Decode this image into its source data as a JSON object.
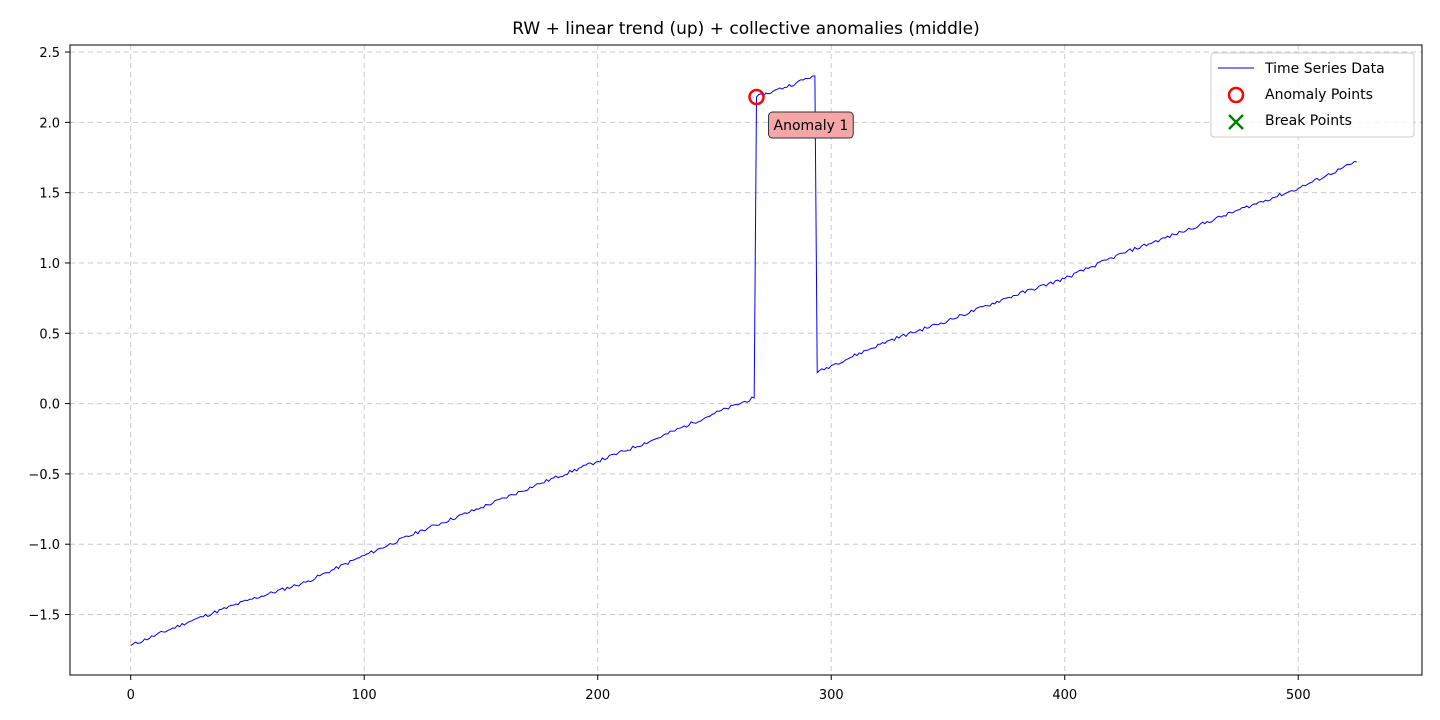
{
  "chart_data": {
    "type": "line",
    "title": "RW + linear trend (up) + collective anomalies (middle)",
    "xlabel": "",
    "ylabel": "",
    "xlim": [
      -26,
      553
    ],
    "ylim": [
      -1.93,
      2.55
    ],
    "x_ticks": [
      0,
      100,
      200,
      300,
      400,
      500
    ],
    "x_tick_labels": [
      "0",
      "100",
      "200",
      "300",
      "400",
      "500"
    ],
    "y_ticks": [
      -1.5,
      -1.0,
      -0.5,
      0.0,
      0.5,
      1.0,
      1.5,
      2.0,
      2.5
    ],
    "y_tick_labels": [
      "−1.5",
      "−1.0",
      "−0.5",
      "0.0",
      "0.5",
      "1.0",
      "1.5",
      "2.0",
      "2.5"
    ],
    "grid": true,
    "legend_position": "top-right",
    "series": [
      {
        "name": "Time Series Data",
        "color": "#0000ff",
        "segments": [
          {
            "x": [
              0,
              25,
              50,
              75,
              100,
              125,
              150,
              175,
              200,
              225,
              250,
              267
            ],
            "y": [
              -1.72,
              -1.55,
              -1.4,
              -1.27,
              -1.08,
              -0.9,
              -0.74,
              -0.57,
              -0.41,
              -0.25,
              -0.07,
              0.04
            ]
          },
          {
            "x": [
              268,
              275,
              285,
              292,
              293
            ],
            "y": [
              2.18,
              2.22,
              2.28,
              2.33,
              2.33
            ]
          },
          {
            "x": [
              294,
              300,
              325,
              350,
              375,
              400,
              425,
              450,
              475,
              500,
              525
            ],
            "y": [
              0.22,
              0.27,
              0.45,
              0.59,
              0.75,
              0.89,
              1.07,
              1.22,
              1.38,
              1.53,
              1.72
            ]
          }
        ]
      }
    ],
    "anomaly_points": {
      "name": "Anomaly Points",
      "color": "#ff0000",
      "x": [
        268
      ],
      "y": [
        2.18
      ]
    },
    "break_points": {
      "name": "Break Points",
      "color": "#008000",
      "x": [],
      "y": []
    },
    "annotations": [
      {
        "text": "Anomaly 1",
        "x": 268,
        "y": 2.18,
        "box_color": "#f4a6a8"
      }
    ]
  }
}
